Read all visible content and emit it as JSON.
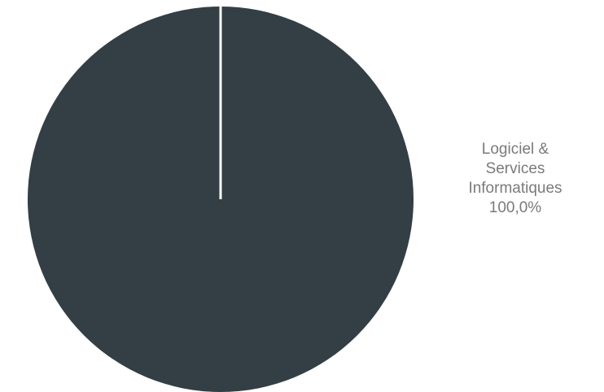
{
  "chart_data": {
    "type": "pie",
    "title": "",
    "categories": [
      "Logiciel & Services Informatiques"
    ],
    "values": [
      100.0
    ],
    "value_labels": [
      "100,0%"
    ],
    "label_lines": [
      "Logiciel &",
      "Services",
      "Informatiques"
    ],
    "colors": [
      "#333f45"
    ],
    "separator_color": "#ffffff",
    "legend": "none",
    "label_placement": "outside-right"
  }
}
